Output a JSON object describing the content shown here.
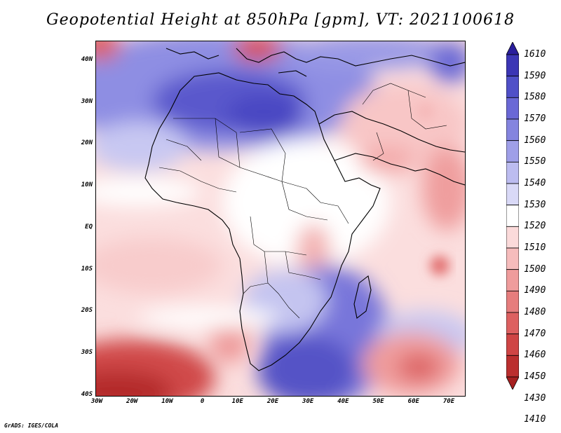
{
  "title": "Geopotential Height at 850hPa [gpm], VT: 2021100618",
  "credit": "GrADS: IGES/COLA",
  "latitude_labels": [
    "40N",
    "30N",
    "20N",
    "10N",
    "EQ",
    "10S",
    "20S",
    "30S",
    "40S"
  ],
  "longitude_labels": [
    "30W",
    "20W",
    "10W",
    "0",
    "10E",
    "20E",
    "30E",
    "40E",
    "50E",
    "60E",
    "70E"
  ],
  "colorbar": {
    "levels": [
      "1610",
      "1590",
      "1580",
      "1570",
      "1560",
      "1550",
      "1540",
      "1530",
      "1520",
      "1510",
      "1500",
      "1490",
      "1480",
      "1470",
      "1460",
      "1450",
      "1430",
      "1410"
    ],
    "colors": [
      "#2a1e9c",
      "#3c36b5",
      "#5050c8",
      "#6a68d6",
      "#8484df",
      "#9f9fe8",
      "#bcbcf0",
      "#d9d9f7",
      "#ffffff",
      "#fbdada",
      "#f6bcbc",
      "#ef9c9c",
      "#e67d7d",
      "#dd6060",
      "#cf4545",
      "#bb2f2f",
      "#a62020"
    ]
  },
  "colors": {
    "land_outline": "#000000",
    "frame": "#000000"
  }
}
